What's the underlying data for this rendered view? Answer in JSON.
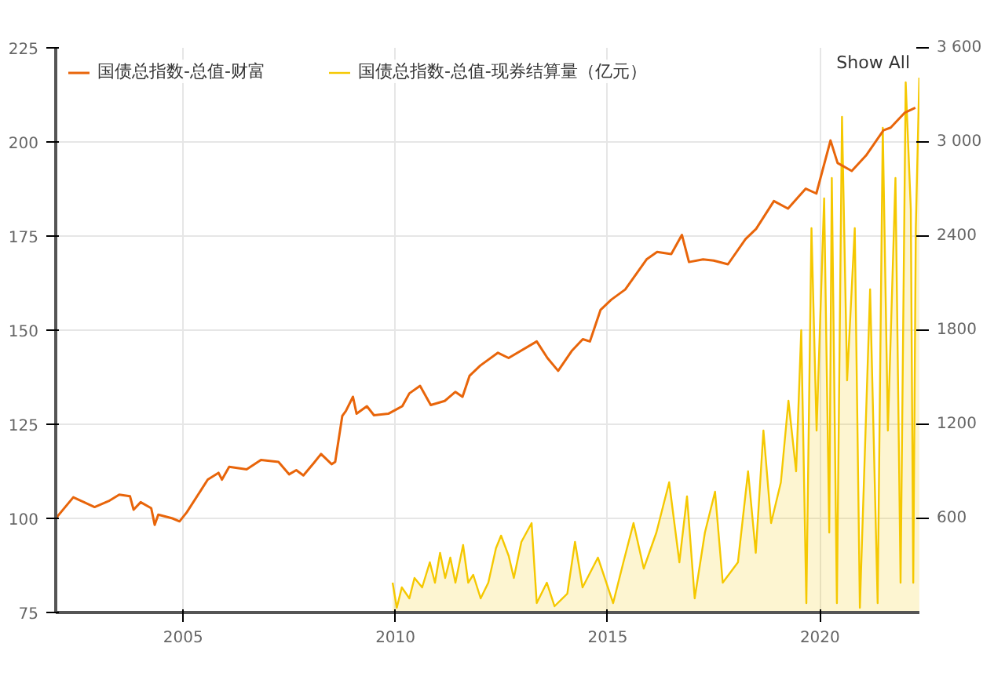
{
  "chart_data": {
    "type": "line",
    "xlim": [
      "2002-01-01",
      "2022-05-06"
    ],
    "xticks": [
      {
        "value": "2005-01-01",
        "label": "2005"
      },
      {
        "value": "2010-01-01",
        "label": "2010"
      },
      {
        "value": "2015-01-01",
        "label": "2015"
      },
      {
        "value": "2020-01-01",
        "label": "2020"
      }
    ],
    "ylim": [
      75,
      225
    ],
    "yticks": [
      75,
      100,
      125,
      150,
      175,
      200,
      225
    ],
    "y2lim": [
      0,
      3600
    ],
    "y2ticks": [
      600,
      1200,
      1800,
      2400,
      {
        "value": 3000,
        "label": "3 000"
      },
      {
        "value": 3600,
        "label": "3 600"
      }
    ],
    "grid": true,
    "legend": "top",
    "marker": "none",
    "line_style": "solid",
    "annotations": [
      "Show All"
    ],
    "series": [
      {
        "name": "国债总指数-总值-财富",
        "color": "#e8650a",
        "x": [
          "2002-01",
          "2002-06",
          "2002-09",
          "2002-12",
          "2003-04",
          "2003-07",
          "2003-10",
          "2003-11",
          "2004-01",
          "2004-04",
          "2004-05",
          "2004-06",
          "2004-10",
          "2004-12",
          "2005-02",
          "2005-08",
          "2005-11",
          "2005-12",
          "2006-02",
          "2006-07",
          "2006-11",
          "2007-04",
          "2007-07",
          "2007-09",
          "2007-11",
          "2008-02",
          "2008-04",
          "2008-07",
          "2008-08",
          "2008-10",
          "2008-11",
          "2009-01",
          "2009-02",
          "2009-05",
          "2009-07",
          "2009-11",
          "2010-03",
          "2010-05",
          "2010-08",
          "2010-11",
          "2011-03",
          "2011-06",
          "2011-08",
          "2011-10",
          "2012-01",
          "2012-06",
          "2012-09",
          "2013-05",
          "2013-08",
          "2013-11",
          "2014-03",
          "2014-06",
          "2014-08",
          "2014-11",
          "2015-02",
          "2015-06",
          "2015-12",
          "2016-03",
          "2016-07",
          "2016-10",
          "2016-12",
          "2017-04",
          "2017-07",
          "2017-11",
          "2018-04",
          "2018-07",
          "2018-12",
          "2019-04",
          "2019-09",
          "2019-12",
          "2020-04",
          "2020-06",
          "2020-10",
          "2021-02",
          "2021-07",
          "2021-09",
          "2022-01",
          "2022-04"
        ],
        "values": [
          100,
          105.6,
          104.3,
          103,
          104.6,
          106.3,
          105.9,
          102.3,
          104.3,
          102.7,
          98.3,
          101,
          100,
          99.2,
          101.6,
          110.3,
          112.1,
          110.3,
          113.7,
          113,
          115.5,
          115,
          111.7,
          112.8,
          111.4,
          114.8,
          117.1,
          114.4,
          115,
          127.2,
          128.5,
          132.3,
          127.8,
          129.8,
          127.4,
          127.8,
          129.8,
          133.2,
          135.2,
          130.1,
          131.2,
          133.6,
          132.3,
          137.9,
          140.6,
          144,
          142.6,
          147,
          142.6,
          139.2,
          144.6,
          147.6,
          147,
          155.4,
          158.1,
          160.8,
          168.8,
          170.8,
          170.2,
          175.3,
          168.1,
          168.8,
          168.5,
          167.5,
          174.2,
          176.9,
          184.3,
          182.3,
          187.6,
          186.3,
          200.4,
          194.4,
          192.3,
          196.4,
          203.1,
          203.8,
          207.8,
          209.1
        ]
      },
      {
        "name": "国债总指数-总值-现券结算量（亿元）",
        "color": "#f5c800",
        "type": "area",
        "axis": "y2",
        "x": [
          "2009-12-08",
          "2010-01-13",
          "2010-02-25",
          "2010-05-01",
          "2010-06-14",
          "2010-08-19",
          "2010-10-24",
          "2010-12-07",
          "2011-01-20",
          "2011-03-05",
          "2011-04-18",
          "2011-06-01",
          "2011-08-06",
          "2011-09-19",
          "2011-11-01",
          "2012-01-04",
          "2012-03-10",
          "2012-05-15",
          "2012-06-28",
          "2012-09-02",
          "2012-10-16",
          "2012-12-20",
          "2013-03-18",
          "2013-05-01",
          "2013-07-27",
          "2013-10-01",
          "2014-01-19",
          "2014-03-26",
          "2014-05-30",
          "2014-10-09",
          "2015-02-17",
          "2015-05-16",
          "2015-08-11",
          "2015-11-07",
          "2016-02-24",
          "2016-06-13",
          "2016-09-09",
          "2016-11-14",
          "2017-01-19",
          "2017-04-17",
          "2017-07-13",
          "2017-09-17",
          "2018-01-26",
          "2018-04-23",
          "2018-06-28",
          "2018-09-02",
          "2018-11-07",
          "2019-01-30",
          "2019-04-05",
          "2019-06-10",
          "2019-07-24",
          "2019-09-06",
          "2019-10-20",
          "2019-12-03",
          "2020-02-06",
          "2020-03-21",
          "2020-04-12",
          "2020-05-26",
          "2020-07-09",
          "2020-08-22",
          "2020-10-27",
          "2020-12-10",
          "2021-03-08",
          "2021-05-12",
          "2021-06-25",
          "2021-08-08",
          "2021-10-12",
          "2021-11-25",
          "2022-01-08",
          "2022-02-21",
          "2022-03-14",
          "2022-04-05",
          "2022-05-05"
        ],
        "values": [
          190,
          30,
          160,
          90,
          220,
          160,
          320,
          190,
          380,
          220,
          350,
          190,
          430,
          190,
          240,
          90,
          190,
          410,
          490,
          360,
          220,
          450,
          570,
          60,
          190,
          40,
          120,
          450,
          160,
          350,
          60,
          320,
          570,
          280,
          510,
          830,
          320,
          740,
          90,
          510,
          770,
          190,
          320,
          900,
          380,
          1160,
          570,
          830,
          1350,
          900,
          1800,
          60,
          2450,
          1160,
          2640,
          510,
          2770,
          60,
          3160,
          1480,
          2450,
          30,
          2060,
          60,
          3090,
          1160,
          2770,
          190,
          3380,
          2570,
          190,
          2450,
          3410
        ]
      }
    ]
  }
}
